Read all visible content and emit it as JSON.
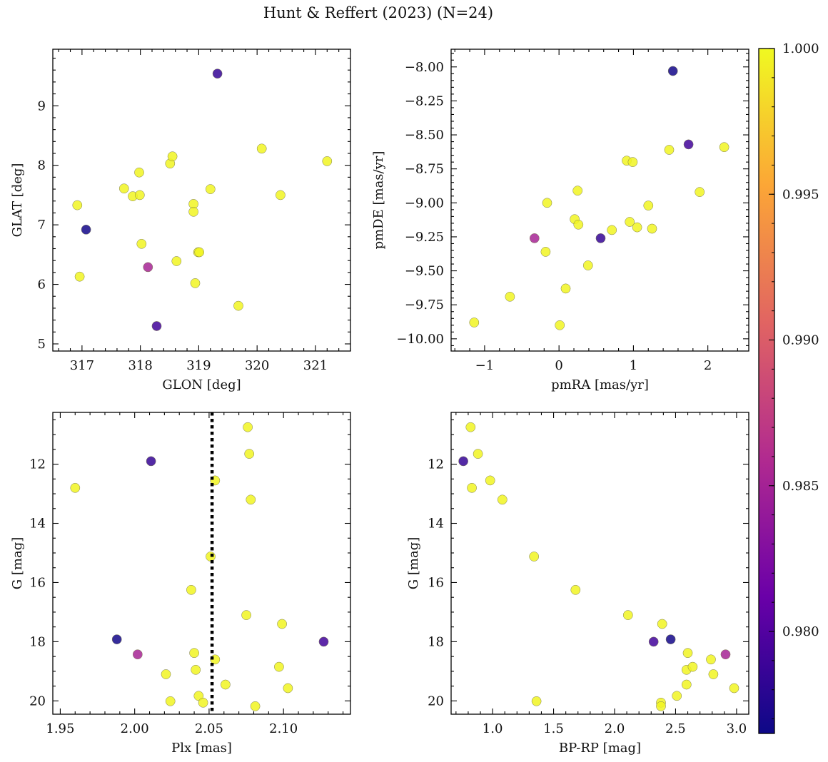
{
  "figure": {
    "title": "Hunt & Reffert (2023) (N=24)"
  },
  "colorbar": {
    "colormap": "plasma",
    "range": [
      0.9765,
      1.0
    ],
    "ticks": [
      1.0,
      0.995,
      0.99,
      0.985,
      0.98
    ],
    "tick_labels": [
      "1.000",
      "0.995",
      "0.990",
      "0.985",
      "0.980"
    ],
    "stops": [
      "#0d0887",
      "#6a00a8",
      "#b12a90",
      "#e16462",
      "#fca636",
      "#f0f921"
    ]
  },
  "chart_data": [
    {
      "id": "glon-glat",
      "type": "scatter",
      "xlabel": "GLON [deg]",
      "ylabel": "GLAT [deg]",
      "xlim": [
        316.5,
        321.6
      ],
      "ylim": [
        4.88,
        9.95
      ],
      "xinverted": false,
      "yinverted": false,
      "xticks": [
        317,
        318,
        319,
        320,
        321
      ],
      "xtick_labels": [
        "317",
        "318",
        "319",
        "320",
        "321"
      ],
      "yticks": [
        5,
        6,
        7,
        8,
        9
      ],
      "ytick_labels": [
        "5",
        "6",
        "7",
        "8",
        "9"
      ],
      "x": [
        317.07,
        319.32,
        318.13,
        318.28,
        316.92,
        316.96,
        317.72,
        317.87,
        317.98,
        317.99,
        318.02,
        318.51,
        318.55,
        318.62,
        318.91,
        318.91,
        318.94,
        318.99,
        319.01,
        319.2,
        319.68,
        320.08,
        320.4,
        321.2
      ],
      "y": [
        6.92,
        9.54,
        6.29,
        5.3,
        7.33,
        6.13,
        7.61,
        7.48,
        7.88,
        7.5,
        6.68,
        8.03,
        8.15,
        6.39,
        7.35,
        7.22,
        6.02,
        6.54,
        6.54,
        7.6,
        5.64,
        8.28,
        7.5,
        8.07
      ],
      "c": [
        0.9768,
        0.9785,
        0.9852,
        0.9792,
        0.9998,
        0.9998,
        0.9998,
        0.9998,
        0.9998,
        0.9998,
        0.9998,
        0.9998,
        0.9998,
        0.9998,
        0.9998,
        0.9998,
        0.9998,
        0.9998,
        0.9998,
        0.9998,
        0.9998,
        0.9998,
        0.9998,
        0.9998
      ]
    },
    {
      "id": "pmra-pmde",
      "type": "scatter",
      "xlabel": "pmRA [mas/yr]",
      "ylabel": "pmDE [mas/yr]",
      "xlim": [
        -1.45,
        2.55
      ],
      "ylim": [
        -10.09,
        -7.87
      ],
      "xinverted": false,
      "yinverted": false,
      "xticks": [
        -1,
        0,
        1,
        2
      ],
      "xtick_labels": [
        "−1",
        "0",
        "1",
        "2"
      ],
      "yticks": [
        -10.0,
        -9.75,
        -9.5,
        -9.25,
        -9.0,
        -8.75,
        -8.5,
        -8.25,
        -8.0
      ],
      "ytick_labels": [
        "−10.00",
        "−9.75",
        "−9.50",
        "−9.25",
        "−9.00",
        "−8.75",
        "−8.50",
        "−8.25",
        "−8.00"
      ],
      "x": [
        1.53,
        1.74,
        0.56,
        -0.33,
        -1.14,
        -0.66,
        -0.16,
        -0.18,
        0.09,
        0.01,
        0.21,
        0.25,
        0.26,
        0.39,
        0.71,
        0.91,
        0.95,
        0.99,
        1.05,
        1.2,
        1.25,
        1.48,
        1.89,
        2.22
      ],
      "y": [
        -8.03,
        -8.57,
        -9.26,
        -9.26,
        -9.88,
        -9.69,
        -9.0,
        -9.36,
        -9.63,
        -9.9,
        -9.12,
        -8.91,
        -9.16,
        -9.46,
        -9.2,
        -8.69,
        -9.14,
        -8.7,
        -9.18,
        -9.02,
        -9.19,
        -8.61,
        -8.92,
        -8.59
      ],
      "c": [
        0.9768,
        0.9792,
        0.9785,
        0.9852,
        0.9998,
        0.9998,
        0.9998,
        0.9998,
        0.9998,
        0.9998,
        0.9998,
        0.9998,
        0.9998,
        0.9998,
        0.9998,
        0.9998,
        0.9998,
        0.9998,
        0.9998,
        0.9998,
        0.9998,
        0.9998,
        0.9998,
        0.9998
      ]
    },
    {
      "id": "plx-g",
      "type": "scatter",
      "xlabel": "Plx [mas]",
      "ylabel": "G [mag]",
      "xlim": [
        1.945,
        2.145
      ],
      "ylim": [
        10.25,
        20.45
      ],
      "xinverted": false,
      "yinverted": true,
      "xticks": [
        1.95,
        2.0,
        2.05,
        2.1
      ],
      "xtick_labels": [
        "1.95",
        "2.00",
        "2.05",
        "2.10"
      ],
      "yticks": [
        12,
        14,
        16,
        18,
        20
      ],
      "ytick_labels": [
        "12",
        "14",
        "16",
        "18",
        "20"
      ],
      "vline": 2.052,
      "x": [
        1.988,
        2.011,
        2.002,
        2.127,
        1.96,
        2.076,
        2.077,
        2.054,
        2.078,
        2.051,
        2.038,
        2.075,
        2.099,
        2.04,
        2.054,
        2.021,
        2.041,
        2.061,
        2.097,
        2.103,
        2.043,
        2.046,
        2.024,
        2.081
      ],
      "y": [
        17.92,
        11.9,
        18.43,
        18.0,
        12.8,
        10.75,
        11.65,
        12.55,
        13.2,
        15.12,
        16.25,
        17.1,
        17.4,
        18.38,
        18.6,
        19.1,
        18.95,
        19.45,
        18.85,
        19.57,
        19.83,
        20.06,
        20.01,
        20.18
      ],
      "c": [
        0.9768,
        0.9785,
        0.9852,
        0.9792,
        0.9998,
        0.9998,
        0.9998,
        0.9998,
        0.9998,
        0.9998,
        0.9998,
        0.9998,
        0.9998,
        0.9998,
        0.9998,
        0.9998,
        0.9998,
        0.9998,
        0.9998,
        0.9998,
        0.9998,
        0.9998,
        0.9998,
        0.9998
      ]
    },
    {
      "id": "bprp-g",
      "type": "scatter",
      "xlabel": "BP-RP [mag]",
      "ylabel": "G [mag]",
      "xlim": [
        0.66,
        3.1
      ],
      "ylim": [
        10.25,
        20.45
      ],
      "xinverted": false,
      "yinverted": true,
      "xticks": [
        1.0,
        1.5,
        2.0,
        2.5,
        3.0
      ],
      "xtick_labels": [
        "1.0",
        "1.5",
        "2.0",
        "2.5",
        "3.0"
      ],
      "yticks": [
        12,
        14,
        16,
        18,
        20
      ],
      "ytick_labels": [
        "12",
        "14",
        "16",
        "18",
        "20"
      ],
      "x": [
        0.76,
        2.46,
        2.32,
        2.91,
        0.82,
        0.88,
        0.83,
        0.98,
        1.08,
        1.34,
        1.68,
        2.11,
        2.39,
        2.6,
        2.79,
        2.81,
        2.59,
        2.64,
        2.59,
        2.98,
        2.51,
        2.38,
        2.38,
        1.36
      ],
      "y": [
        11.9,
        17.92,
        18.0,
        18.43,
        10.75,
        11.65,
        12.8,
        12.55,
        13.2,
        15.12,
        16.25,
        17.1,
        17.4,
        18.38,
        18.6,
        19.1,
        18.95,
        18.85,
        19.45,
        19.57,
        19.83,
        20.06,
        20.18,
        20.01
      ],
      "c": [
        0.9785,
        0.9768,
        0.9792,
        0.9852,
        0.9998,
        0.9998,
        0.9998,
        0.9998,
        0.9998,
        0.9998,
        0.9998,
        0.9998,
        0.9998,
        0.9998,
        0.9998,
        0.9998,
        0.9998,
        0.9998,
        0.9998,
        0.9998,
        0.9998,
        0.9998,
        0.9998,
        0.9998
      ]
    }
  ]
}
